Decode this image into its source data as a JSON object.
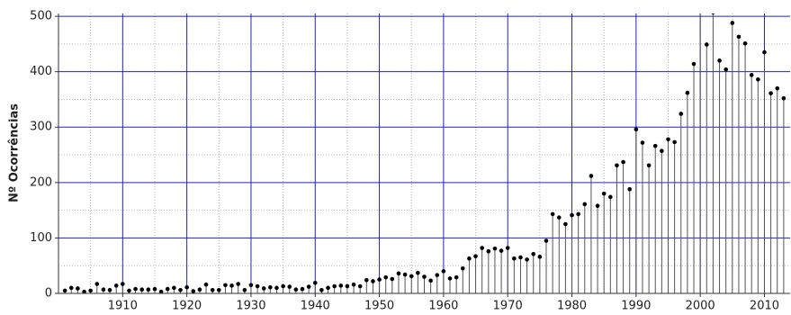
{
  "chart_data": {
    "type": "stem",
    "y_label": "Nº Ocorrências",
    "x": [
      1901,
      1902,
      1903,
      1904,
      1905,
      1906,
      1907,
      1908,
      1909,
      1910,
      1911,
      1912,
      1913,
      1914,
      1915,
      1916,
      1917,
      1918,
      1919,
      1920,
      1921,
      1922,
      1923,
      1924,
      1925,
      1926,
      1927,
      1928,
      1929,
      1930,
      1931,
      1932,
      1933,
      1934,
      1935,
      1936,
      1937,
      1938,
      1939,
      1940,
      1941,
      1942,
      1943,
      1944,
      1945,
      1946,
      1947,
      1948,
      1949,
      1950,
      1951,
      1952,
      1953,
      1954,
      1955,
      1956,
      1957,
      1958,
      1959,
      1960,
      1961,
      1962,
      1963,
      1964,
      1965,
      1966,
      1967,
      1968,
      1969,
      1970,
      1971,
      1972,
      1973,
      1974,
      1975,
      1976,
      1977,
      1978,
      1979,
      1980,
      1981,
      1982,
      1983,
      1984,
      1985,
      1986,
      1987,
      1988,
      1989,
      1990,
      1991,
      1992,
      1993,
      1994,
      1995,
      1996,
      1997,
      1998,
      1999,
      2000,
      2001,
      2002,
      2003,
      2004,
      2005,
      2006,
      2007,
      2008,
      2009,
      2010,
      2011,
      2012,
      2013
    ],
    "values": [
      5,
      10,
      9,
      3,
      5,
      17,
      7,
      6,
      14,
      17,
      5,
      8,
      7,
      7,
      8,
      3,
      8,
      10,
      6,
      11,
      4,
      7,
      16,
      6,
      6,
      15,
      14,
      17,
      6,
      15,
      13,
      9,
      11,
      10,
      13,
      12,
      7,
      8,
      12,
      19,
      6,
      10,
      13,
      14,
      13,
      16,
      13,
      24,
      22,
      25,
      29,
      26,
      36,
      34,
      31,
      37,
      30,
      23,
      33,
      40,
      27,
      29,
      45,
      63,
      67,
      82,
      76,
      81,
      77,
      82,
      63,
      65,
      61,
      71,
      66,
      95,
      143,
      137,
      125,
      141,
      143,
      161,
      212,
      158,
      180,
      174,
      231,
      237,
      188,
      296,
      272,
      231,
      266,
      257,
      278,
      273,
      324,
      362,
      414,
      530,
      449,
      507,
      420,
      404,
      488,
      463,
      451,
      394,
      386,
      435,
      361,
      370,
      352
    ],
    "color": "#000000",
    "stem_color": "#555555",
    "xlim": [
      1900,
      2014
    ],
    "xticks": [
      1910,
      1920,
      1930,
      1940,
      1950,
      1960,
      1970,
      1980,
      1990,
      2000,
      2010
    ],
    "ylim": [
      0,
      505
    ],
    "yticks": [
      0,
      100,
      200,
      300,
      400,
      500
    ],
    "grid": true,
    "grid_color": "#2020d0",
    "minor_grid": true
  }
}
